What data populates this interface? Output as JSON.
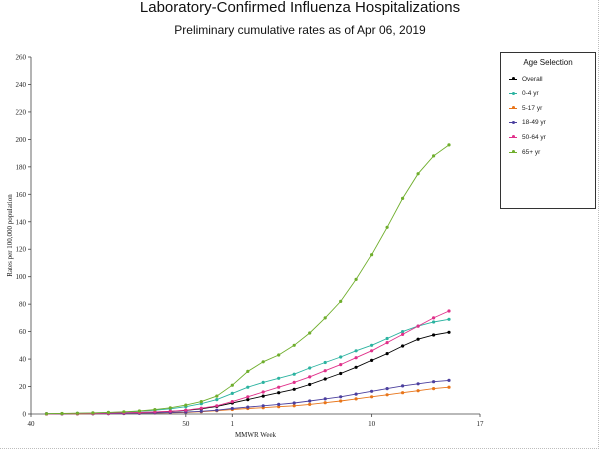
{
  "title": "Laboratory-Confirmed Influenza Hospitalizations",
  "subtitle": "Preliminary cumulative rates as of Apr 06, 2019",
  "chart_data": {
    "type": "line",
    "xlabel": "MMWR Week",
    "ylabel": "Rates per 100,000 population",
    "ylim": [
      0,
      260
    ],
    "yticks": [
      0,
      20,
      40,
      60,
      80,
      100,
      120,
      140,
      160,
      180,
      200,
      220,
      240,
      260
    ],
    "xtick_labels": [
      "40",
      "50",
      "1",
      "10",
      "17"
    ],
    "xtick_weeks": [
      0,
      10,
      13,
      22,
      29
    ],
    "x_week_indices": [
      1,
      2,
      3,
      4,
      5,
      6,
      7,
      8,
      9,
      10,
      11,
      12,
      13,
      14,
      15,
      16,
      17,
      18,
      19,
      20,
      21,
      22,
      23,
      24,
      25,
      26,
      27
    ],
    "grid": false,
    "legend_title": "Age Selection",
    "legend_position": "right",
    "series": [
      {
        "name": "Overall",
        "color": "#000000",
        "values": [
          0.1,
          0.2,
          0.3,
          0.4,
          0.6,
          0.8,
          1.0,
          1.4,
          1.8,
          2.6,
          3.8,
          5.5,
          8.0,
          10.5,
          13.0,
          15.5,
          18.0,
          21.5,
          25.5,
          29.5,
          34.0,
          39.0,
          44.0,
          49.5,
          54.5,
          57.5,
          59.5
        ]
      },
      {
        "name": "0-4 yr",
        "color": "#2bb3a0",
        "values": [
          0.2,
          0.3,
          0.5,
          0.7,
          1.0,
          1.4,
          2.0,
          2.8,
          3.8,
          5.3,
          7.5,
          10.5,
          15.0,
          19.5,
          23.0,
          26.0,
          29.0,
          33.5,
          37.5,
          41.5,
          46.0,
          50.0,
          55.0,
          60.0,
          64.0,
          67.0,
          69.0
        ]
      },
      {
        "name": "5-17 yr",
        "color": "#e8751a",
        "values": [
          0.0,
          0.1,
          0.1,
          0.2,
          0.3,
          0.4,
          0.5,
          0.7,
          0.9,
          1.2,
          1.7,
          2.4,
          3.3,
          4.0,
          4.6,
          5.3,
          6.0,
          7.0,
          8.2,
          9.5,
          11.0,
          12.5,
          14.0,
          15.5,
          17.0,
          18.5,
          19.5
        ]
      },
      {
        "name": "18-49 yr",
        "color": "#4b3f9e",
        "values": [
          0.1,
          0.1,
          0.2,
          0.2,
          0.3,
          0.4,
          0.6,
          0.8,
          1.0,
          1.4,
          2.0,
          2.8,
          4.0,
          5.0,
          6.0,
          7.0,
          8.0,
          9.5,
          11.0,
          12.5,
          14.5,
          16.5,
          18.5,
          20.5,
          22.0,
          23.5,
          24.5
        ]
      },
      {
        "name": "50-64 yr",
        "color": "#e0308a",
        "values": [
          0.1,
          0.2,
          0.3,
          0.4,
          0.6,
          0.8,
          1.1,
          1.5,
          2.0,
          2.8,
          4.2,
          6.0,
          9.0,
          12.5,
          16.0,
          19.5,
          23.0,
          27.0,
          31.5,
          36.0,
          41.0,
          46.0,
          52.0,
          58.0,
          64.0,
          70.0,
          75.0
        ]
      },
      {
        "name": "65+ yr",
        "color": "#6fae2c",
        "values": [
          0.2,
          0.4,
          0.6,
          0.8,
          1.2,
          1.6,
          2.2,
          3.2,
          4.5,
          6.5,
          9.0,
          13.0,
          21.0,
          31.0,
          38.0,
          43.0,
          50.0,
          59.0,
          70.0,
          82.0,
          98.0,
          116.0,
          136.0,
          157.0,
          175.0,
          188.0,
          196.0
        ]
      }
    ]
  }
}
